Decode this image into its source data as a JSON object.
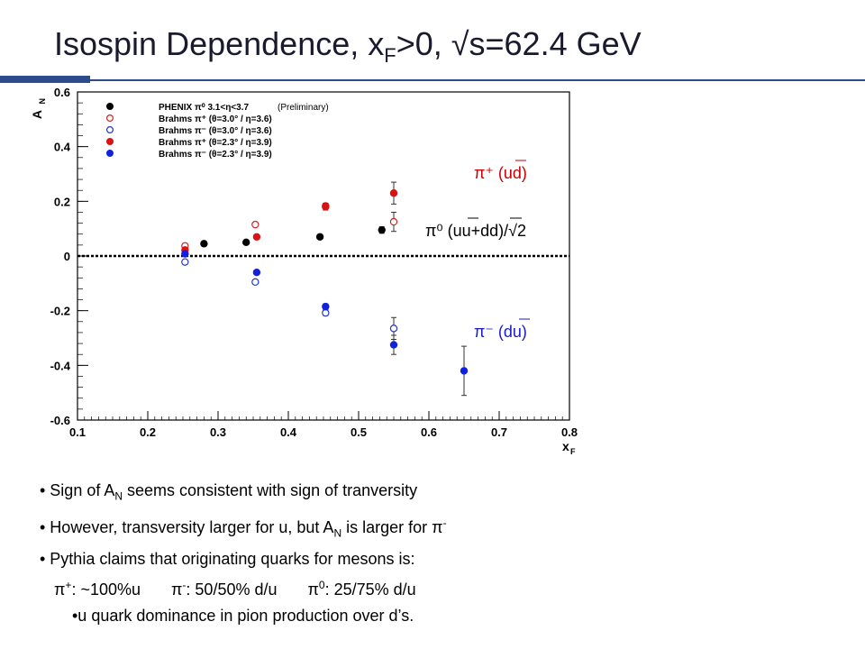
{
  "slide": {
    "title_main": "Isospin Dependence, x",
    "title_sub": "F",
    "title_rest": ">0, √s=62.4 GeV"
  },
  "chart_data": {
    "type": "scatter",
    "xlabel": "x",
    "xlabel_sub": "F",
    "ylabel": "A",
    "ylabel_sub": "N",
    "xlim": [
      0.1,
      0.8
    ],
    "ylim": [
      -0.6,
      0.6
    ],
    "x_ticks": [
      "0.1",
      "0.2",
      "0.3",
      "0.4",
      "0.5",
      "0.6",
      "0.7",
      "0.8"
    ],
    "y_ticks": [
      "-0.6",
      "-0.4",
      "-0.2",
      "0",
      "0.2",
      "0.4",
      "0.6"
    ],
    "zero_line": true,
    "legend_note": "(Preliminary)",
    "series": [
      {
        "name": "PHENIX π⁰ 3.1<η<3.7",
        "color": "#000000",
        "filled": true,
        "points": [
          [
            0.28,
            0.045
          ],
          [
            0.34,
            0.05
          ],
          [
            0.445,
            0.07
          ],
          [
            0.533,
            0.095
          ]
        ],
        "errors": [
          0.005,
          0.006,
          0.006,
          0.012
        ]
      },
      {
        "name": "Brahms π⁺ (θ=3.0° / η=3.6)",
        "color": "#cc2222",
        "filled": false,
        "points": [
          [
            0.253,
            0.037
          ],
          [
            0.353,
            0.115
          ],
          [
            0.453,
            0.183
          ],
          [
            0.55,
            0.125
          ]
        ],
        "errors": [
          0.006,
          0.008,
          0.01,
          0.035
        ]
      },
      {
        "name": "Brahms π⁻ (θ=3.0° / η=3.6)",
        "color": "#2233cc",
        "filled": false,
        "points": [
          [
            0.253,
            -0.022
          ],
          [
            0.353,
            -0.095
          ],
          [
            0.453,
            -0.208
          ],
          [
            0.55,
            -0.265
          ]
        ],
        "errors": [
          0.005,
          0.008,
          0.01,
          0.04
        ]
      },
      {
        "name": "Brahms π⁺ (θ=2.3° / η=3.9)",
        "color": "#dd1111",
        "filled": true,
        "points": [
          [
            0.253,
            0.022
          ],
          [
            0.355,
            0.07
          ],
          [
            0.453,
            0.18
          ],
          [
            0.55,
            0.23
          ]
        ],
        "errors": [
          0.005,
          0.007,
          0.012,
          0.04
        ]
      },
      {
        "name": "Brahms π⁻ (θ=2.3° / η=3.9)",
        "color": "#1122dd",
        "filled": true,
        "points": [
          [
            0.253,
            0.008
          ],
          [
            0.355,
            -0.06
          ],
          [
            0.453,
            -0.185
          ],
          [
            0.55,
            -0.325
          ],
          [
            0.65,
            -0.42
          ]
        ],
        "errors": [
          0.005,
          0.006,
          0.01,
          0.035,
          0.09
        ]
      }
    ],
    "annotations": [
      {
        "text": "π⁺ (ud)",
        "color": "#cc0000"
      },
      {
        "text": "π⁰ (uu+dd)/√2",
        "color": "#000000"
      },
      {
        "text": "π⁻ (du)",
        "color": "#1a1acc"
      }
    ]
  },
  "bullets": {
    "b1_pre": "• Sign of A",
    "b1_sub": "N",
    "b1_post": " seems consistent with sign of tranversity",
    "b2_pre": "• However, transversity larger for u, but A",
    "b2_sub": "N",
    "b2_mid": " is larger for π",
    "b2_sup": "-",
    "b3": "• Pythia claims that originating quarks for mesons is:",
    "b4_a": "π",
    "b4_a_sup": "+",
    "b4_a_txt": ": ~100%u",
    "b4_b": "π",
    "b4_b_sup": "-",
    "b4_b_txt": ": 50/50% d/u",
    "b4_c": "π",
    "b4_c_sup": "0",
    "b4_c_txt": ": 25/75% d/u",
    "b5": "•u quark dominance in pion production over d’s."
  }
}
